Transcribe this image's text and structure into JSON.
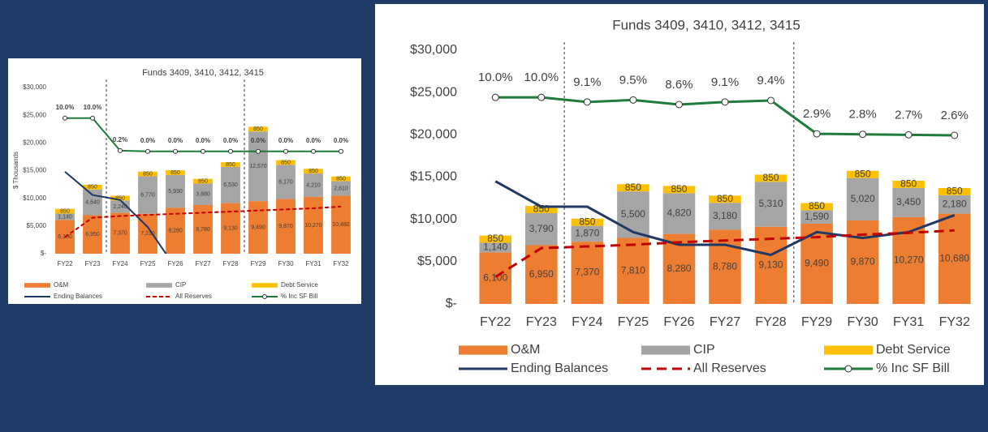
{
  "chart_data": [
    {
      "type": "bar",
      "stacked": true,
      "title": "Funds 3409, 3410, 3412, 3415",
      "y_label": "$ Thousands",
      "categories": [
        "FY22",
        "FY23",
        "FY24",
        "FY25",
        "FY26",
        "FY27",
        "FY28",
        "FY29",
        "FY30",
        "FY31",
        "FY32"
      ],
      "ylim": [
        0,
        30000
      ],
      "yticks": [
        {
          "value": 0,
          "label": "$-"
        },
        {
          "value": 5000,
          "label": "$5,000"
        },
        {
          "value": 10000,
          "label": "$10,000"
        },
        {
          "value": 15000,
          "label": "$15,000"
        },
        {
          "value": 20000,
          "label": "$20,000"
        },
        {
          "value": 25000,
          "label": "$25,000"
        },
        {
          "value": 30000,
          "label": "$30,000"
        }
      ],
      "y2lim": [
        -30.8,
        19.2
      ],
      "legend": "bottom",
      "series": [
        {
          "name": "O&M",
          "color": "#ed7d31",
          "values": [
            6100,
            6950,
            7370,
            7210,
            8280,
            8780,
            9130,
            9490,
            9870,
            10270,
            10480
          ],
          "value_labels": [
            "6,100",
            "6,950",
            "7,370",
            "7,210",
            "8,280",
            "8,780",
            "9,130",
            "9,490",
            "9,870",
            "10,270",
            "10,480"
          ]
        },
        {
          "name": "CIP",
          "color": "#a5a5a5",
          "values": [
            1140,
            4640,
            2240,
            6770,
            5930,
            3880,
            6530,
            12570,
            6170,
            4210,
            2610
          ],
          "value_labels": [
            "1,140",
            "4,640",
            "2,240",
            "6,770",
            "5,930",
            "3,880",
            "6,530",
            "12,570",
            "6,170",
            "4,210",
            "2,610"
          ]
        },
        {
          "name": "Debt Service",
          "color": "#ffc000",
          "values": [
            850,
            850,
            850,
            850,
            850,
            850,
            850,
            850,
            850,
            850,
            850
          ]
        },
        {
          "name": "Ending Balances",
          "type": "line",
          "color": "#1f3864",
          "values": [
            14800,
            10600,
            9700,
            4800,
            -2500,
            null,
            null,
            null,
            null,
            null,
            null
          ]
        },
        {
          "name": "All Reserves",
          "type": "line",
          "dashed": true,
          "color": "#c00000",
          "values": [
            3000,
            6500,
            6800,
            7000,
            7200,
            7400,
            7600,
            7800,
            8000,
            8200,
            8500
          ]
        },
        {
          "name": "% Inc SF Bill",
          "type": "line",
          "axis": "y2",
          "marker": "circle",
          "color": "#1e7b3a",
          "values": [
            10,
            10,
            0.2,
            0,
            0,
            0,
            0,
            0,
            0,
            0,
            0
          ],
          "value_labels": [
            "10.0%",
            "10.0%",
            "0.2%",
            "0.0%",
            "0.0%",
            "0.0%",
            "0.0%",
            "0.0%",
            "0.0%",
            "0.0%",
            "0.0%"
          ]
        }
      ]
    },
    {
      "type": "bar",
      "stacked": true,
      "title": "Funds 3409, 3410, 3412, 3415",
      "categories": [
        "FY22",
        "FY23",
        "FY24",
        "FY25",
        "FY26",
        "FY27",
        "FY28",
        "FY29",
        "FY30",
        "FY31",
        "FY32"
      ],
      "ylim": [
        0,
        30000
      ],
      "yticks": [
        {
          "value": 0,
          "label": "$-"
        },
        {
          "value": 5000,
          "label": "$5,000"
        },
        {
          "value": 10000,
          "label": "$10,000"
        },
        {
          "value": 15000,
          "label": "$15,000"
        },
        {
          "value": 20000,
          "label": "$20,000"
        },
        {
          "value": 25000,
          "label": "$25,000"
        },
        {
          "value": 30000,
          "label": "$30,000"
        }
      ],
      "y2lim": [
        -30.3,
        19.2
      ],
      "legend": "bottom",
      "series": [
        {
          "name": "O&M",
          "color": "#ed7d31",
          "values": [
            6100,
            6950,
            7370,
            7810,
            8280,
            8780,
            9130,
            9490,
            9870,
            10270,
            10680
          ],
          "value_labels": [
            "6,100",
            "6,950",
            "7,370",
            "7,810",
            "8,280",
            "8,780",
            "9,130",
            "9,490",
            "9,870",
            "10,270",
            "10,680"
          ]
        },
        {
          "name": "CIP",
          "color": "#a5a5a5",
          "values": [
            1140,
            3790,
            1870,
            5500,
            4820,
            3180,
            5310,
            1590,
            5020,
            3450,
            2180
          ],
          "value_labels": [
            "1,140",
            "3,790",
            "1,870",
            "5,500",
            "4,820",
            "3,180",
            "5,310",
            "1,590",
            "5,020",
            "3,450",
            "2,180"
          ]
        },
        {
          "name": "Debt Service",
          "color": "#ffc000",
          "values": [
            850,
            850,
            850,
            850,
            850,
            850,
            850,
            850,
            850,
            850,
            850
          ]
        },
        {
          "name": "Ending Balances",
          "type": "line",
          "color": "#1f3864",
          "values": [
            14500,
            11500,
            11500,
            8500,
            7000,
            7000,
            5800,
            8500,
            7800,
            8500,
            10500
          ]
        },
        {
          "name": "All Reserves",
          "type": "line",
          "dashed": true,
          "color": "#c00000",
          "values": [
            3200,
            6600,
            6800,
            7000,
            7300,
            7500,
            7700,
            7900,
            8200,
            8400,
            8700
          ]
        },
        {
          "name": "% Inc SF Bill",
          "type": "line",
          "axis": "y2",
          "marker": "circle",
          "color": "#1e7b3a",
          "values": [
            10,
            10,
            9.1,
            9.5,
            8.6,
            9.1,
            9.4,
            2.9,
            2.8,
            2.7,
            2.6
          ],
          "value_labels": [
            "10.0%",
            "10.0%",
            "9.1%",
            "9.5%",
            "8.6%",
            "9.1%",
            "9.4%",
            "2.9%",
            "2.8%",
            "2.7%",
            "2.6%"
          ]
        }
      ]
    }
  ]
}
